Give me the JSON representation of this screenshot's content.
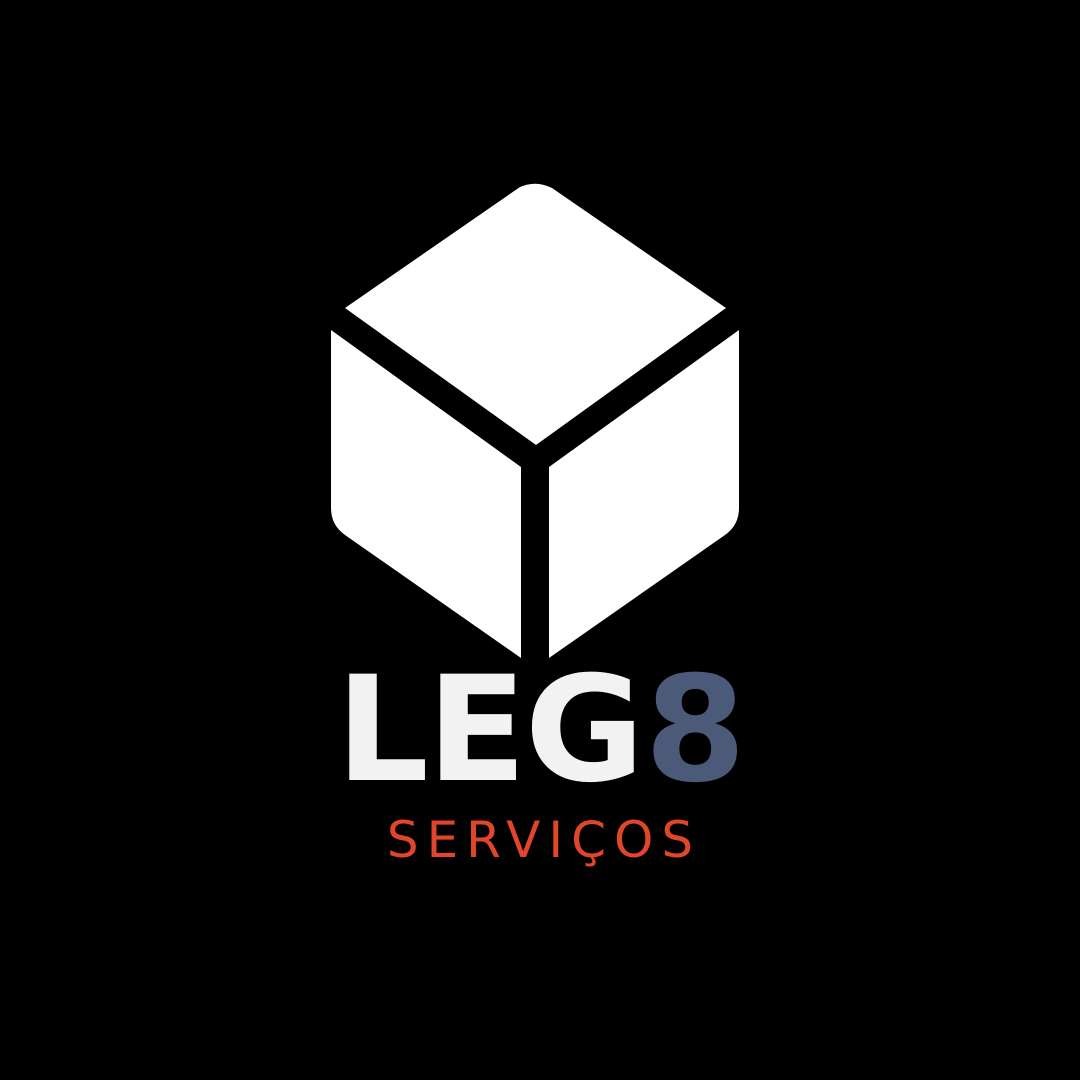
{
  "brand": {
    "wordmark_part_1": "LEG",
    "wordmark_part_2": "8",
    "tagline": "SERVIÇOS"
  },
  "icon": "cube-icon",
  "colors": {
    "background": "#000000",
    "cube": "#ffffff",
    "wordmark_primary": "#f2f2f2",
    "wordmark_accent": "#4a5a78",
    "tagline": "#e2462a"
  }
}
